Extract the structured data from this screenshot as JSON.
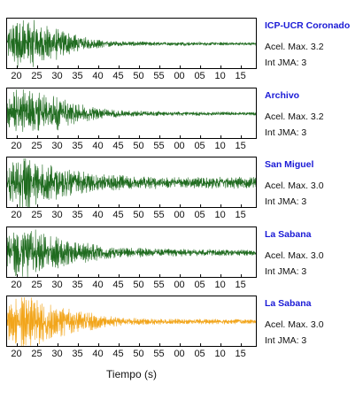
{
  "chart_data": {
    "type": "line",
    "xlabel": "Tiempo (s)",
    "x_ticks": [
      "20",
      "25",
      "30",
      "35",
      "40",
      "45",
      "50",
      "55",
      "00",
      "05",
      "10",
      "15"
    ],
    "panels": [
      {
        "name": "ICP-UCR Coronado",
        "accel": "Acel. Max. 3.2",
        "intensity": "Int JMA: 3",
        "color": "#1f6b1f",
        "envelope": [
          {
            "t": 17.5,
            "amp": 0.55
          },
          {
            "t": 20,
            "amp": 0.9
          },
          {
            "t": 22,
            "amp": 1.0
          },
          {
            "t": 25,
            "amp": 0.75
          },
          {
            "t": 30,
            "amp": 0.55
          },
          {
            "t": 35,
            "amp": 0.3
          },
          {
            "t": 40,
            "amp": 0.15
          },
          {
            "t": 45,
            "amp": 0.09
          },
          {
            "t": 55,
            "amp": 0.07
          },
          {
            "t": 79,
            "amp": 0.05
          }
        ]
      },
      {
        "name": "Archivo",
        "accel": "Acel. Max. 3.2",
        "intensity": "Int JMA: 3",
        "color": "#1f6b1f",
        "envelope": [
          {
            "t": 17.5,
            "amp": 0.5
          },
          {
            "t": 20,
            "amp": 0.85
          },
          {
            "t": 22,
            "amp": 1.0
          },
          {
            "t": 25,
            "amp": 0.8
          },
          {
            "t": 30,
            "amp": 0.6
          },
          {
            "t": 35,
            "amp": 0.35
          },
          {
            "t": 40,
            "amp": 0.2
          },
          {
            "t": 45,
            "amp": 0.12
          },
          {
            "t": 55,
            "amp": 0.08
          },
          {
            "t": 79,
            "amp": 0.06
          }
        ]
      },
      {
        "name": "San Miguel",
        "accel": "Acel. Max. 3.0",
        "intensity": "Int JMA: 3",
        "color": "#1f6b1f",
        "envelope": [
          {
            "t": 17.5,
            "amp": 0.6
          },
          {
            "t": 20,
            "amp": 0.9
          },
          {
            "t": 22,
            "amp": 1.0
          },
          {
            "t": 25,
            "amp": 0.75
          },
          {
            "t": 30,
            "amp": 0.55
          },
          {
            "t": 35,
            "amp": 0.4
          },
          {
            "t": 40,
            "amp": 0.3
          },
          {
            "t": 50,
            "amp": 0.22
          },
          {
            "t": 60,
            "amp": 0.2
          },
          {
            "t": 70,
            "amp": 0.22
          },
          {
            "t": 79,
            "amp": 0.22
          }
        ]
      },
      {
        "name": "La Sabana",
        "accel": "Acel. Max. 3.0",
        "intensity": "Int JMA: 3",
        "color": "#1f6b1f",
        "envelope": [
          {
            "t": 17.5,
            "amp": 0.55
          },
          {
            "t": 20,
            "amp": 0.85
          },
          {
            "t": 22,
            "amp": 1.0
          },
          {
            "t": 25,
            "amp": 0.75
          },
          {
            "t": 30,
            "amp": 0.55
          },
          {
            "t": 35,
            "amp": 0.4
          },
          {
            "t": 40,
            "amp": 0.28
          },
          {
            "t": 45,
            "amp": 0.2
          },
          {
            "t": 55,
            "amp": 0.14
          },
          {
            "t": 79,
            "amp": 0.1
          }
        ]
      },
      {
        "name": "La Sabana",
        "accel": "Acel. Max. 3.0",
        "intensity": "Int JMA: 3",
        "color": "#f2a51a",
        "envelope": [
          {
            "t": 17.5,
            "amp": 0.6
          },
          {
            "t": 20,
            "amp": 0.9
          },
          {
            "t": 22,
            "amp": 1.0
          },
          {
            "t": 25,
            "amp": 0.8
          },
          {
            "t": 30,
            "amp": 0.55
          },
          {
            "t": 35,
            "amp": 0.4
          },
          {
            "t": 40,
            "amp": 0.25
          },
          {
            "t": 45,
            "amp": 0.15
          },
          {
            "t": 55,
            "amp": 0.1
          },
          {
            "t": 79,
            "amp": 0.09
          }
        ]
      }
    ]
  }
}
